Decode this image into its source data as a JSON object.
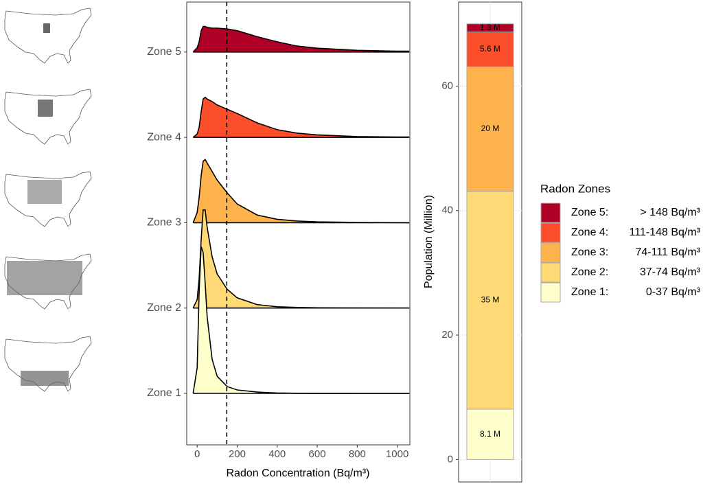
{
  "chart_data": [
    {
      "type": "ridgeline",
      "x_label": "Radon Concentration (Bq/m³)",
      "categories": [
        "Zone 1",
        "Zone 2",
        "Zone 3",
        "Zone 4",
        "Zone 5"
      ],
      "x": [
        -20,
        0,
        10,
        20,
        30,
        40,
        50,
        75,
        100,
        150,
        200,
        300,
        400,
        500,
        600,
        800,
        1000,
        1060
      ],
      "series": [
        {
          "color": "#ffffcc",
          "values": [
            0,
            0.3,
            1.2,
            1.72,
            1.65,
            1.3,
            0.9,
            0.4,
            0.2,
            0.08,
            0.04,
            0.015,
            0.005,
            0.002,
            0.001,
            0,
            0,
            0
          ]
        },
        {
          "color": "#fed976",
          "values": [
            0,
            0.1,
            0.35,
            0.8,
            1.15,
            1.15,
            0.95,
            0.6,
            0.4,
            0.22,
            0.12,
            0.04,
            0.015,
            0.007,
            0.003,
            0.001,
            0,
            0
          ]
        },
        {
          "color": "#feb24c",
          "values": [
            0,
            0.12,
            0.3,
            0.55,
            0.72,
            0.74,
            0.7,
            0.6,
            0.5,
            0.35,
            0.22,
            0.09,
            0.04,
            0.02,
            0.01,
            0.003,
            0.001,
            0
          ]
        },
        {
          "color": "#fc4e2a",
          "values": [
            0,
            0.04,
            0.12,
            0.3,
            0.45,
            0.47,
            0.45,
            0.42,
            0.38,
            0.33,
            0.28,
            0.17,
            0.09,
            0.05,
            0.03,
            0.01,
            0.005,
            0.004
          ]
        },
        {
          "color": "#b10026",
          "values": [
            0,
            0.05,
            0.12,
            0.25,
            0.3,
            0.3,
            0.29,
            0.28,
            0.28,
            0.27,
            0.25,
            0.18,
            0.12,
            0.07,
            0.045,
            0.02,
            0.01,
            0.01
          ]
        }
      ],
      "xlim": [
        -52,
        1063
      ],
      "xticks": [
        0,
        200,
        400,
        600,
        800,
        1000
      ],
      "vline": 148
    },
    {
      "type": "stacked_bar",
      "y_label": "Population (Million)",
      "series": [
        {
          "name": "Zone 1",
          "color": "#ffffcc",
          "values": [
            8.1
          ],
          "value_labels": [
            "8.1 M"
          ]
        },
        {
          "name": "Zone 2",
          "color": "#fed976",
          "values": [
            35
          ],
          "value_labels": [
            "35 M"
          ]
        },
        {
          "name": "Zone 3",
          "color": "#feb24c",
          "values": [
            20
          ],
          "value_labels": [
            "20 M"
          ]
        },
        {
          "name": "Zone 4",
          "color": "#fc4e2a",
          "values": [
            5.6
          ],
          "value_labels": [
            "5.6 M"
          ]
        },
        {
          "name": "Zone 5",
          "color": "#b10026",
          "values": [
            1.3
          ],
          "value_labels": [
            "1.3 M"
          ]
        }
      ],
      "ylim": [
        -3.6,
        73.5
      ],
      "yticks": [
        0,
        20,
        40,
        60
      ],
      "grid": true,
      "legend": {
        "title": "Radon Zones",
        "entries": [
          {
            "label": "Zone 5:",
            "range": "> 148 Bq/m³",
            "color": "#b10026"
          },
          {
            "label": "Zone 4:",
            "range": "111-148 Bq/m³",
            "color": "#fc4e2a"
          },
          {
            "label": "Zone 3:",
            "range": "74-111 Bq/m³",
            "color": "#feb24c"
          },
          {
            "label": "Zone 2:",
            "range": "37-74 Bq/m³",
            "color": "#fed976"
          },
          {
            "label": "Zone 1:",
            "range": "0-37 Bq/m³",
            "color": "#ffffcc"
          }
        ]
      }
    }
  ]
}
